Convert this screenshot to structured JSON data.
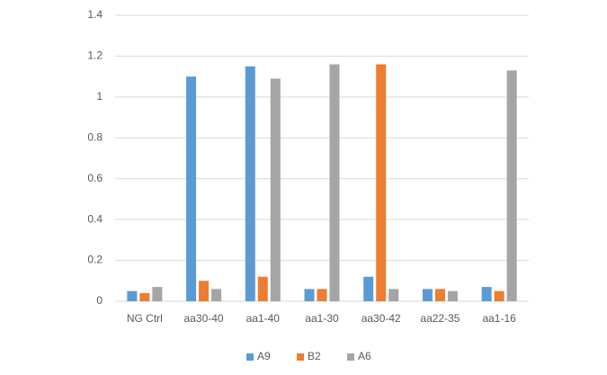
{
  "chart_data": {
    "type": "bar",
    "categories": [
      "NG Ctrl",
      "aa30-40",
      "aa1-40",
      "aa1-30",
      "aa30-42",
      "aa22-35",
      "aa1-16"
    ],
    "series": [
      {
        "name": "A9",
        "color": "#5b9bd5",
        "values": [
          0.05,
          1.1,
          1.15,
          0.06,
          0.12,
          0.06,
          0.07
        ]
      },
      {
        "name": "B2",
        "color": "#ed7d31",
        "values": [
          0.04,
          0.1,
          0.12,
          0.06,
          1.16,
          0.06,
          0.05
        ]
      },
      {
        "name": "A6",
        "color": "#a5a5a5",
        "values": [
          0.07,
          0.06,
          1.09,
          1.16,
          0.06,
          0.05,
          1.13
        ]
      }
    ],
    "ylim": [
      0,
      1.4
    ],
    "yticks": [
      0,
      0.2,
      0.4,
      0.6,
      0.8,
      1,
      1.2,
      1.4
    ],
    "grid": true,
    "legend": "bottom"
  }
}
